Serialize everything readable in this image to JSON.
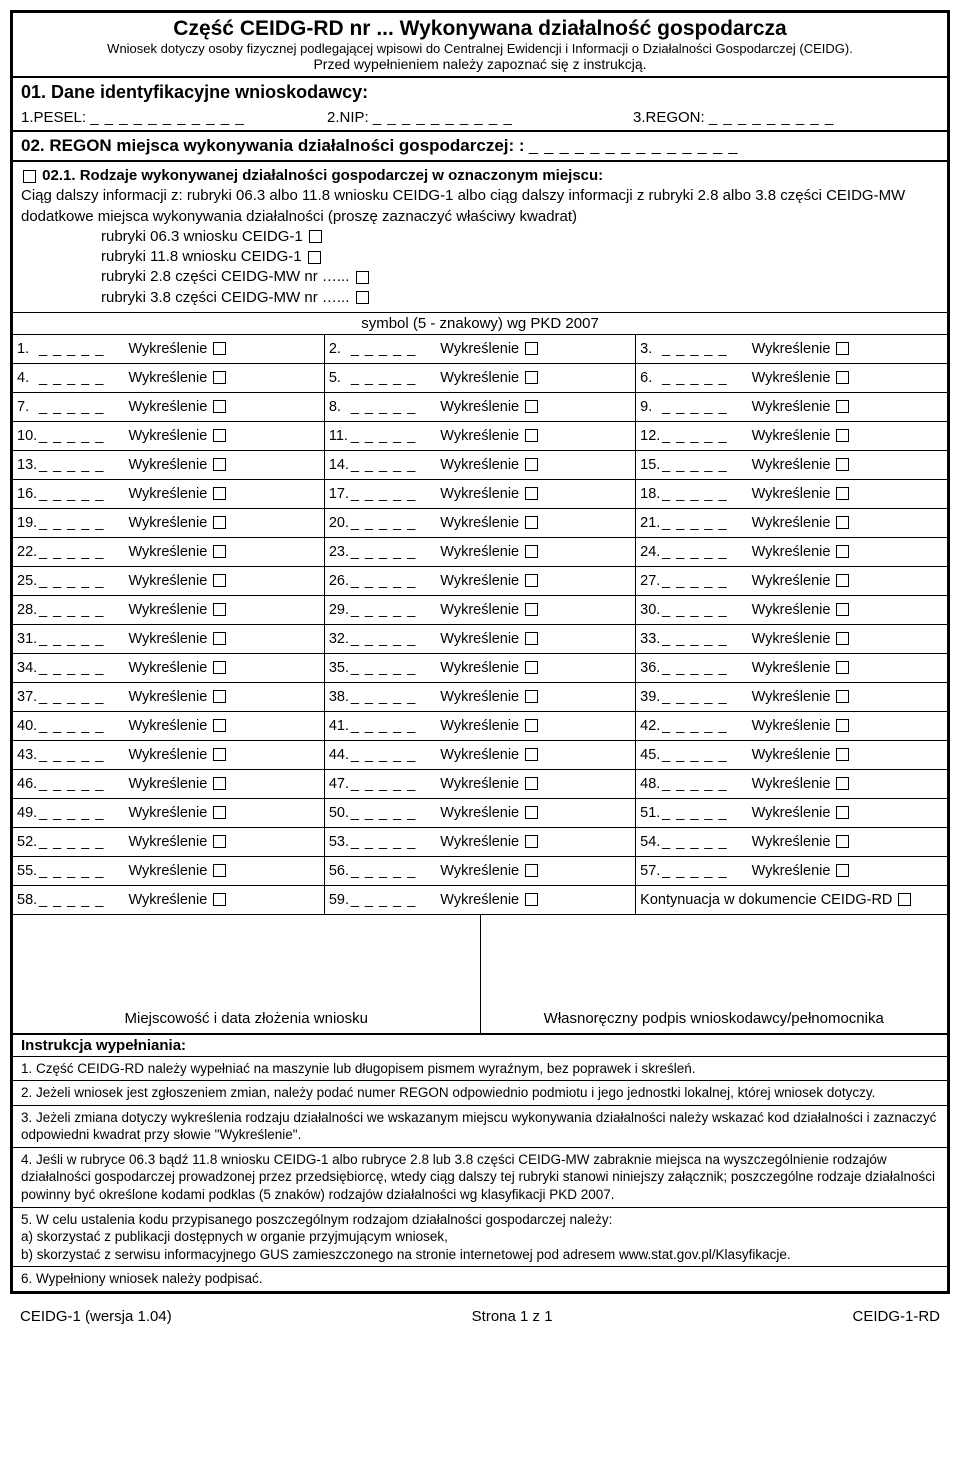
{
  "header": {
    "title": "Część CEIDG-RD nr ...  Wykonywana działalność gospodarcza",
    "subtitle": "Wniosek dotyczy osoby fizycznej podlegającej wpisowi do Centralnej Ewidencji i Informacji o Działalności Gospodarczej (CEIDG).",
    "instruction": "Przed wypełnieniem należy zapoznać się z instrukcją."
  },
  "s01": {
    "title": "01. Dane identyfikacyjne wnioskodawcy:",
    "pesel_label": "1.PESEL:",
    "pesel_blanks": "_ _ _ _ _ _ _ _ _ _ _",
    "nip_label": "2.NIP:",
    "nip_blanks": "_ _ _ _ _ _ _ _ _ _",
    "regon_label": "3.REGON:",
    "regon_blanks": "_ _ _ _ _ _ _ _ _"
  },
  "s02": {
    "title": "02. REGON miejsca wykonywania działalności gospodarczej: :",
    "blanks": "_ _ _ _ _ _ _ _ _   _ _ _ _ _"
  },
  "s021": {
    "title": "02.1. Rodzaje wykonywanej działalności gospodarczej w oznaczonym miejscu:",
    "line1": "Ciąg dalszy informacji z: rubryki 06.3 albo 11.8 wniosku CEIDG-1 albo ciąg dalszy informacji z rubryki 2.8 albo 3.8 części CEIDG-MW dodatkowe miejsca wykonywania działalności (proszę zaznaczyć właściwy kwadrat)",
    "opt1": "rubryki 06.3 wniosku CEIDG-1",
    "opt2": "rubryki 11.8 wniosku CEIDG-1",
    "opt3": "rubryki 2.8 części CEIDG-MW nr …...",
    "opt4": "rubryki 3.8 części CEIDG-MW nr …...",
    "symbol": "symbol (5 - znakowy) wg PKD 2007"
  },
  "pkd": {
    "blanks": "_ _ _ _ _",
    "wyk": "Wykreślenie",
    "count": 59,
    "last_cell": "Kontynuacja w dokumencie CEIDG-RD"
  },
  "sig": {
    "left": "Miejscowość i data złożenia wniosku",
    "right": "Własnoręczny podpis wnioskodawcy/pełnomocnika"
  },
  "instr": {
    "title": "Instrukcja wypełniania:",
    "rows": [
      "1. Część  CEIDG-RD należy wypełniać na maszynie lub długopisem pismem wyraźnym, bez poprawek i skreśleń.",
      "2. Jeżeli wniosek jest zgłoszeniem zmian, należy podać numer REGON odpowiednio podmiotu i jego jednostki lokalnej, której wniosek dotyczy.",
      "3. Jeżeli zmiana dotyczy wykreślenia rodzaju działalności we wskazanym miejscu wykonywania działalności należy wskazać kod działalności i zaznaczyć odpowiedni kwadrat przy słowie \"Wykreślenie\".",
      "4. Jeśli w rubryce 06.3 bądź 11.8  wniosku CEIDG-1 albo rubryce 2.8 lub 3.8 części CEIDG-MW  zabraknie miejsca na wyszczególnienie rodzajów działalności gospodarczej prowadzonej przez przedsiębiorcę, wtedy ciąg dalszy tej rubryki stanowi niniejszy załącznik; poszczególne rodzaje działalności powinny być określone kodami podklas (5 znaków) rodzajów działalności wg klasyfikacji PKD 2007.",
      "5. W celu ustalenia kodu przypisanego poszczególnym rodzajom działalności gospodarczej należy:\na) skorzystać z publikacji dostępnych w organie przyjmującym wniosek,\nb) skorzystać z serwisu informacyjnego GUS zamieszczonego na stronie internetowej pod adresem www.stat.gov.pl/Klasyfikacje.",
      "6. Wypełniony wniosek należy podpisać."
    ]
  },
  "footer": {
    "left": "CEIDG-1 (wersja 1.04)",
    "center": "Strona 1 z 1",
    "right": "CEIDG-1-RD"
  }
}
